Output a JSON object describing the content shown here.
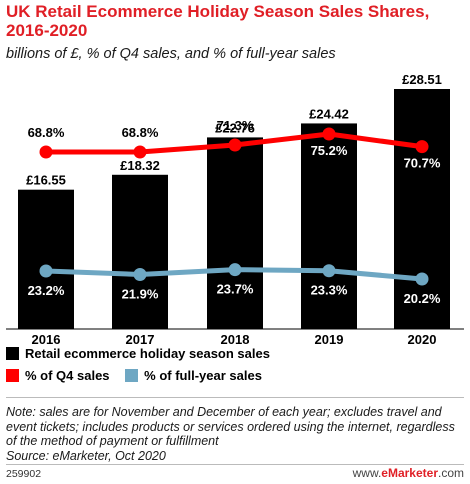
{
  "header": {
    "title": "UK Retail Ecommerce Holiday Season Sales Shares, 2016-2020",
    "subtitle": "billions of £, % of Q4 sales, and % of full-year sales"
  },
  "legend": {
    "bar_label": "Retail ecommerce holiday season sales",
    "q4_label": "% of Q4 sales",
    "full_year_label": "% of full-year sales"
  },
  "colors": {
    "title": "#e01f26",
    "bars": "#000000",
    "q4_line": "#ff0000",
    "full_year_line": "#6ea7c3"
  },
  "chart_data": {
    "type": "bar",
    "categories": [
      "2016",
      "2017",
      "2018",
      "2019",
      "2020"
    ],
    "series": [
      {
        "name": "Retail ecommerce holiday season sales",
        "values": [
          16.55,
          18.32,
          22.76,
          24.42,
          28.51
        ],
        "labels": [
          "£16.55",
          "£18.32",
          "£22.76",
          "£24.42",
          "£28.51"
        ]
      },
      {
        "name": "% of Q4 sales",
        "type": "line",
        "values": [
          68.8,
          68.8,
          71.3,
          75.2,
          70.7
        ],
        "labels": [
          "68.8%",
          "68.8%",
          "71.3%",
          "75.2%",
          "70.7%"
        ]
      },
      {
        "name": "% of full-year sales",
        "type": "line",
        "values": [
          23.2,
          21.9,
          23.7,
          23.3,
          20.2
        ],
        "labels": [
          "23.2%",
          "21.9%",
          "23.7%",
          "23.3%",
          "20.2%"
        ]
      }
    ],
    "grid": false
  },
  "footer": {
    "note": "Note: sales are for November and December of each year; excludes travel and event tickets; includes products or services ordered using the internet, regardless of the method of payment or fulfillment",
    "source": "Source: eMarketer, Oct 2020",
    "id": "259902",
    "brand_prefix": "www.",
    "brand_name": "eMarketer",
    "brand_suffix": ".com"
  }
}
